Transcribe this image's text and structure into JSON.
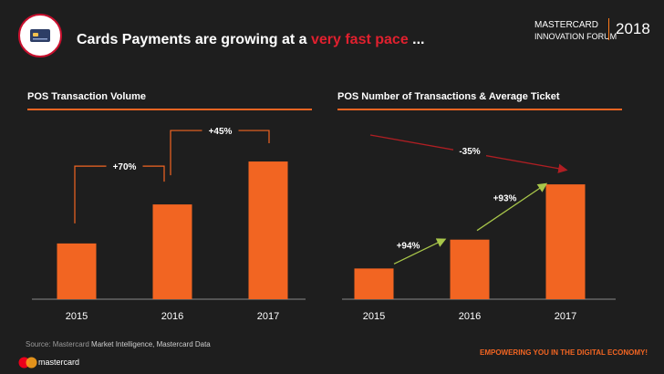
{
  "header": {
    "title_prefix": "Cards Payments are growing at a ",
    "title_highlight": "very fast pace",
    "title_suffix": " ...",
    "brand_line1": "MASTERCARD",
    "brand_line2": "INNOVATION FORUM",
    "year": "2018"
  },
  "colors": {
    "bar": "#f26522",
    "accent_red": "#c8102e",
    "arrow_green": "#a8c64a",
    "arrow_red": "#b01e23",
    "background": "#1e1e1e"
  },
  "chart_data": [
    {
      "type": "bar",
      "title": "POS Transaction Volume",
      "categories": [
        "2015",
        "2016",
        "2017"
      ],
      "values": [
        1.0,
        1.7,
        2.47
      ],
      "ylim": [
        0,
        2.7
      ],
      "annotations": [
        {
          "from": "2015",
          "to": "2016",
          "label": "+70%"
        },
        {
          "from": "2016",
          "to": "2017",
          "label": "+45%"
        }
      ]
    },
    {
      "type": "bar",
      "title": "POS Number of Transactions & Average Ticket",
      "categories": [
        "2015",
        "2016",
        "2017"
      ],
      "values": [
        1.0,
        1.94,
        3.74
      ],
      "ylim": [
        0,
        4.1
      ],
      "annotations": [
        {
          "from": "2015",
          "to": "2016",
          "label": "+94%",
          "arrow": "green"
        },
        {
          "from": "2016",
          "to": "2017",
          "label": "+93%",
          "arrow": "green"
        },
        {
          "from": "start",
          "to": "2017",
          "label": "-35%",
          "arrow": "red"
        }
      ]
    }
  ],
  "footer": {
    "source_label": "Source: Mastercard",
    "source_text": " Market Intelligence, Mastercard Data",
    "tagline": "EMPOWERING YOU IN THE DIGITAL ECONOMY!",
    "logo_text": "mastercard"
  }
}
